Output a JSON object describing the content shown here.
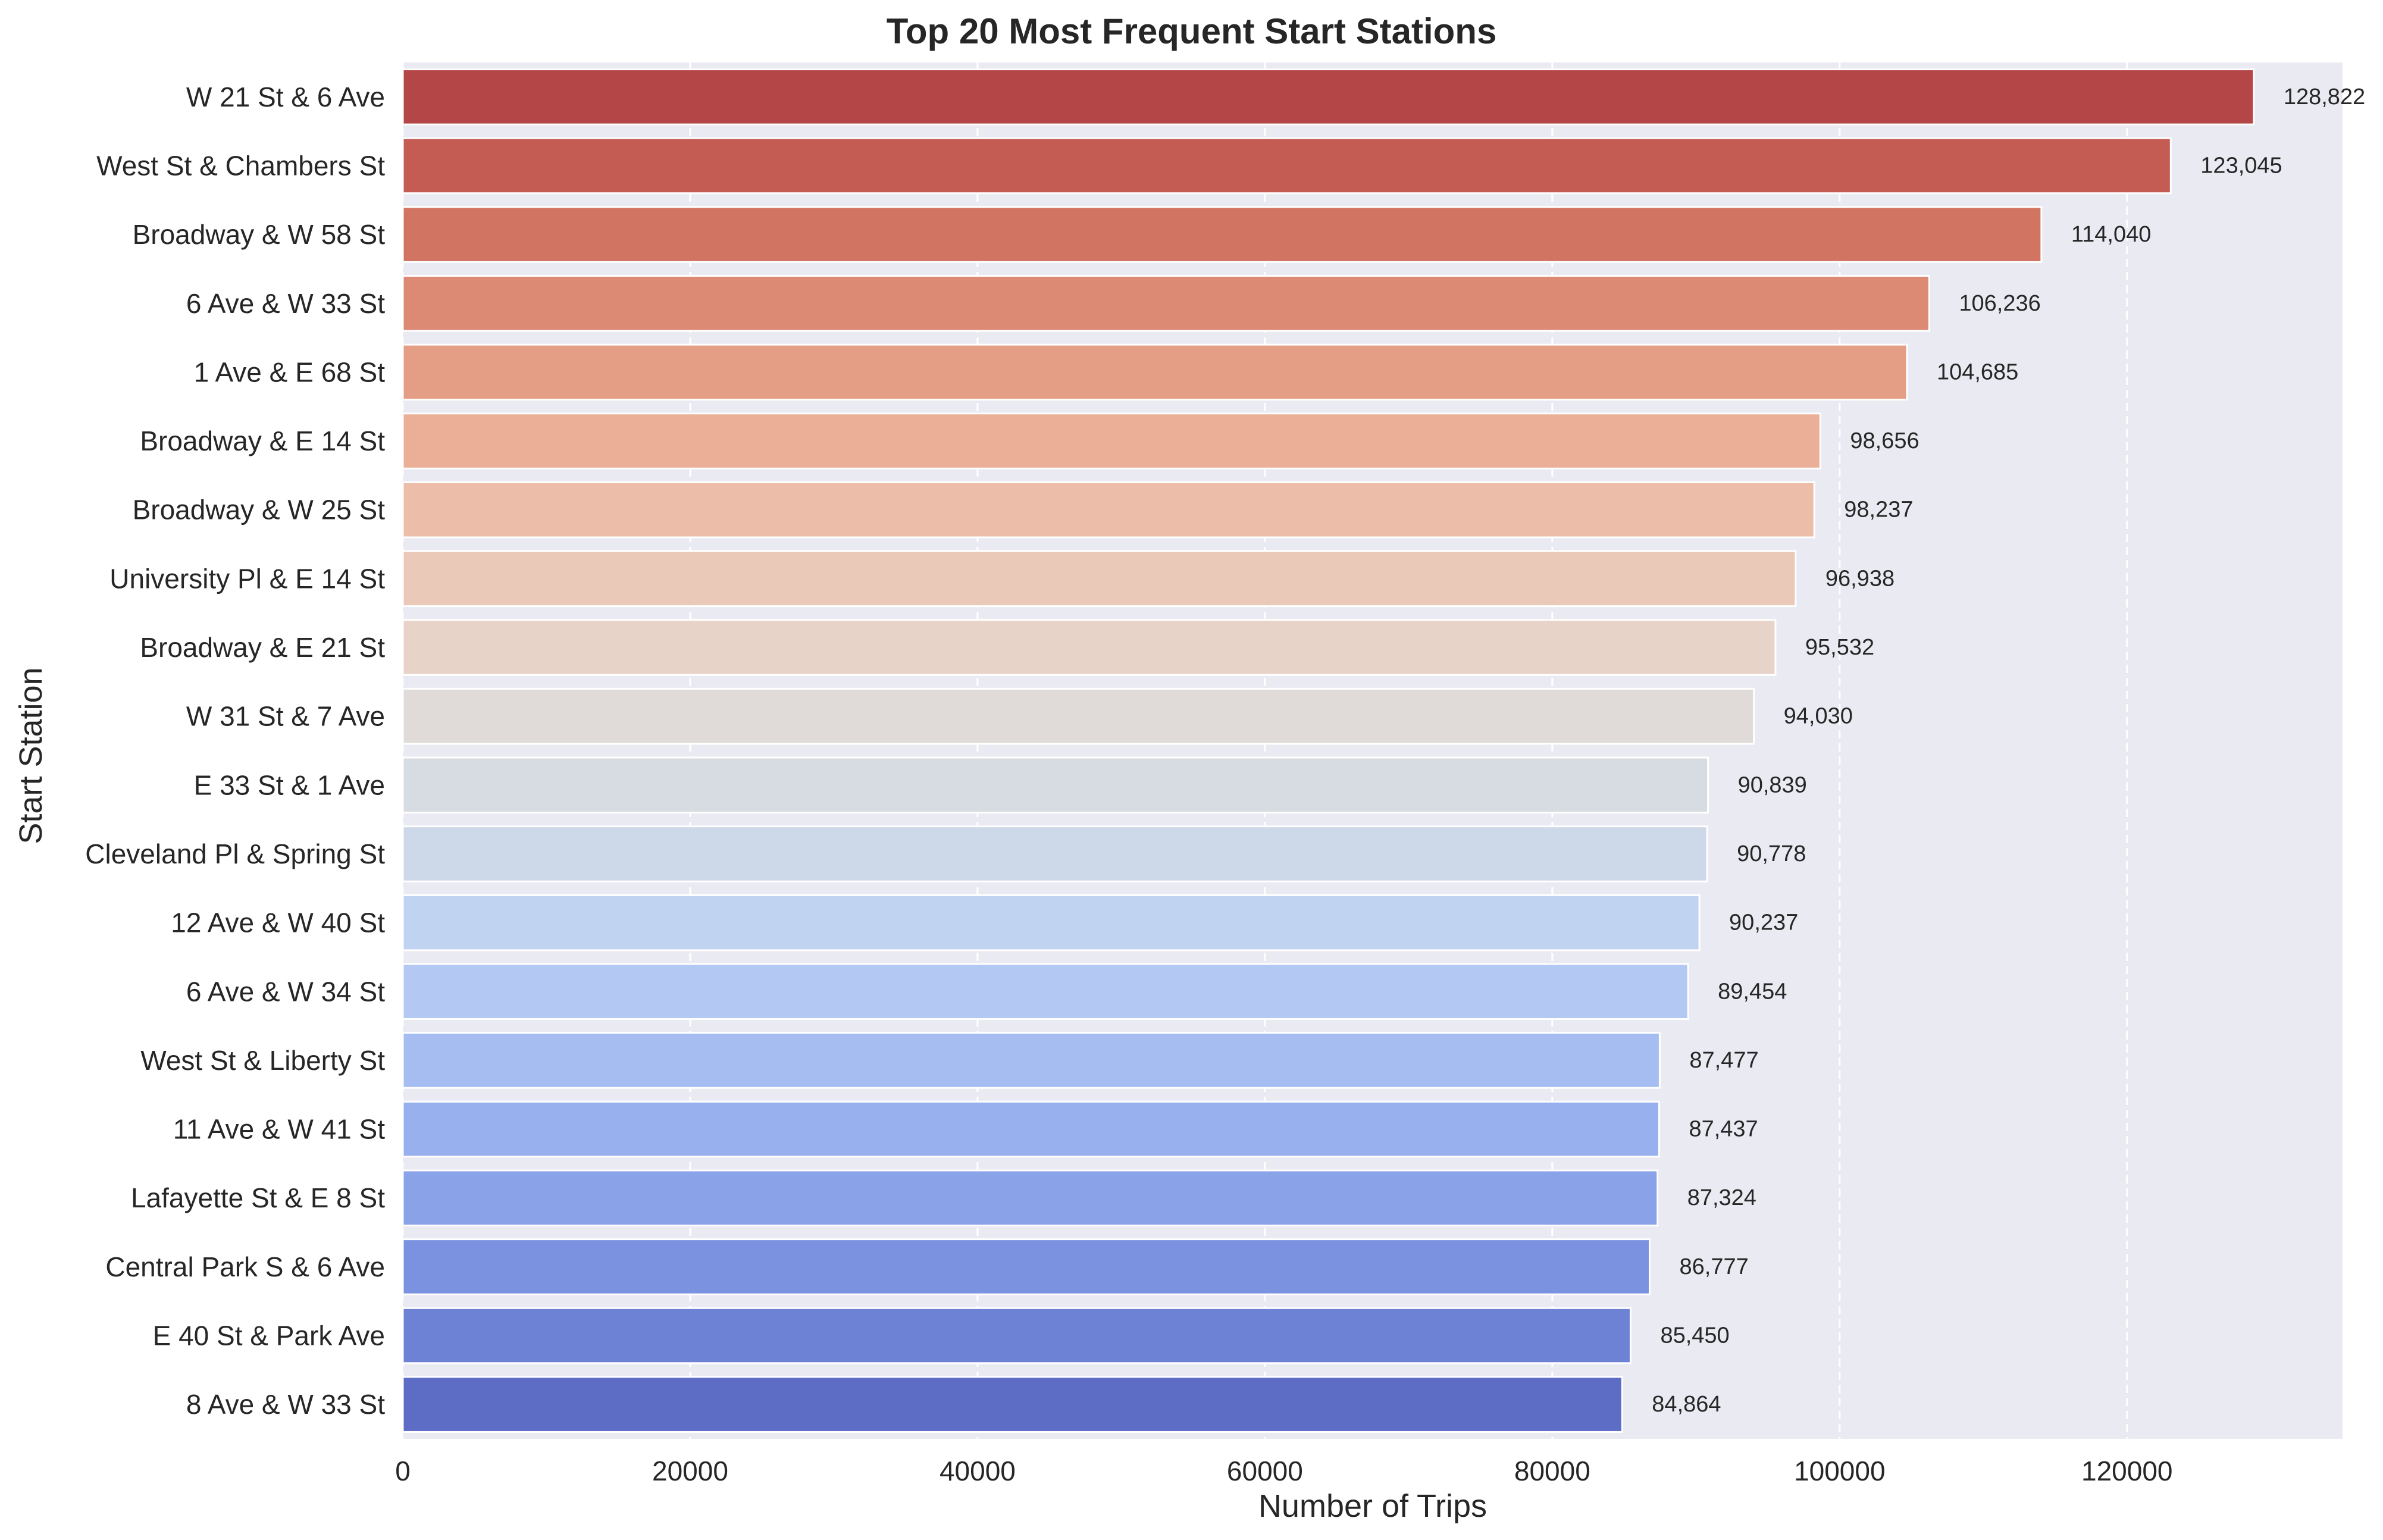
{
  "chart_data": {
    "type": "bar",
    "orientation": "horizontal",
    "title": "Top 20 Most Frequent Start Stations",
    "xlabel": "Number of Trips",
    "ylabel": "Start Station",
    "xlim": [
      0,
      135000
    ],
    "xticks": [
      0,
      20000,
      40000,
      60000,
      80000,
      100000,
      120000
    ],
    "xtick_labels": [
      "0",
      "20000",
      "40000",
      "60000",
      "80000",
      "100000",
      "120000"
    ],
    "grid": true,
    "categories": [
      "W 21 St & 6 Ave",
      "West St & Chambers St",
      "Broadway & W 58 St",
      "6 Ave & W 33 St",
      "1 Ave & E 68 St",
      "Broadway & E 14 St",
      "Broadway & W 25 St",
      "University Pl & E 14 St",
      "Broadway & E 21 St",
      "W 31 St & 7 Ave",
      "E 33 St & 1 Ave",
      "Cleveland Pl & Spring St",
      "12 Ave & W 40 St",
      "6 Ave & W 34 St",
      "West St & Liberty St",
      "11 Ave & W 41 St",
      "Lafayette St & E 8 St",
      "Central Park S & 6 Ave",
      "E 40 St & Park Ave",
      "8 Ave & W 33 St"
    ],
    "values": [
      128822,
      123045,
      114040,
      106236,
      104685,
      98656,
      98237,
      96938,
      95532,
      94030,
      90839,
      90778,
      90237,
      89454,
      87477,
      87437,
      87324,
      86777,
      85450,
      84864
    ],
    "value_labels": [
      "128,822",
      "123,045",
      "114,040",
      "106,236",
      "104,685",
      "98,656",
      "98,237",
      "96,938",
      "95,532",
      "94,030",
      "90,839",
      "90,778",
      "90,237",
      "89,454",
      "87,477",
      "87,437",
      "87,324",
      "86,777",
      "85,450",
      "84,864"
    ],
    "colors": [
      "#b44647",
      "#c45c53",
      "#d17461",
      "#dd8a74",
      "#e59e86",
      "#ebaf97",
      "#ecbea9",
      "#ebc9b9",
      "#e8d3c8",
      "#e0dbd8",
      "#d7dbe2",
      "#cdd8e9",
      "#c0d3f1",
      "#b3c8f3",
      "#a6bdf2",
      "#98b0ee",
      "#8aa2e8",
      "#7b92e0",
      "#6d82d5",
      "#5d6cc4"
    ],
    "plot_background": "#eaeaf2",
    "grid_color": "#ffffff"
  }
}
